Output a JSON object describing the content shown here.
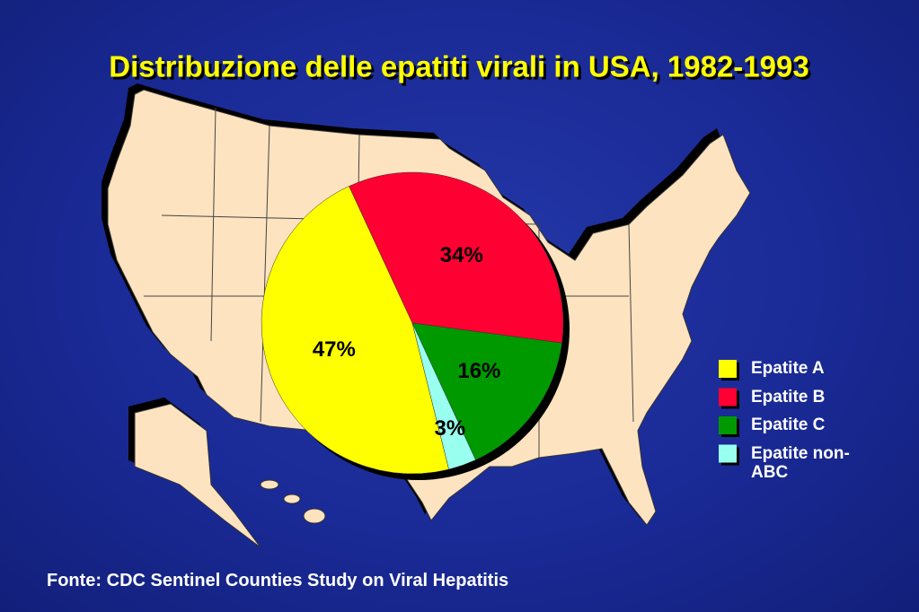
{
  "chart_data": {
    "type": "pie",
    "title": "Distribuzione delle epatiti virali in USA, 1982-1993",
    "categories": [
      "Epatite A",
      "Epatite B",
      "Epatite C",
      "Epatite non-ABC"
    ],
    "values": [
      47,
      34,
      16,
      3
    ],
    "value_labels": [
      "47%",
      "34%",
      "16%",
      "3%"
    ],
    "colors": [
      "#ffff00",
      "#ff0033",
      "#009900",
      "#99ffee"
    ],
    "legend": "right",
    "source": "Fonte: CDC Sentinel Counties Study on Viral Hepatitis"
  }
}
